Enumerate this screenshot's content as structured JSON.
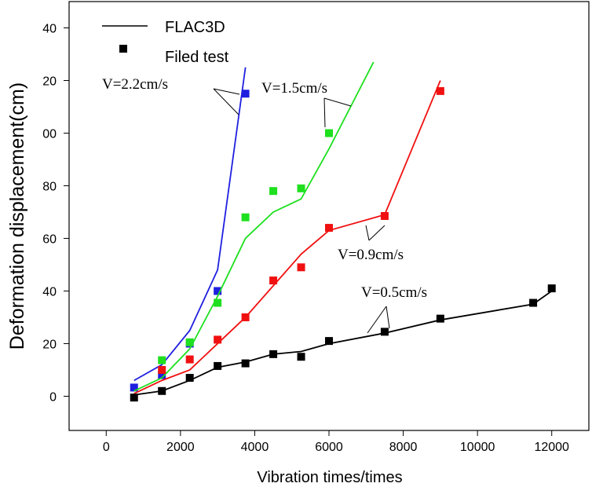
{
  "chart_data": {
    "type": "line-scatter",
    "x_label": "Vibration times/times",
    "y_label": "Deformation displacement(cm)",
    "legend": [
      "FLAC3D",
      "Filed test"
    ],
    "xlim": [
      -1000,
      13000
    ],
    "ylim": [
      -13,
      150
    ],
    "xticks": [
      0,
      2000,
      4000,
      6000,
      8000,
      10000,
      12000
    ],
    "yticks": [
      0,
      20,
      40,
      60,
      80,
      {
        "value": 100,
        "label": "00"
      },
      {
        "value": 120,
        "label": "20"
      },
      {
        "value": 140,
        "label": "40"
      }
    ],
    "series": [
      {
        "label": "V=2.2cm/s",
        "color": "#1f1fe0",
        "line": {
          "x": [
            750,
            1500,
            2250,
            3000,
            3750
          ],
          "values": [
            6,
            12,
            25,
            48,
            125
          ]
        },
        "points": {
          "x": [
            750,
            1500,
            2250,
            3000,
            3750
          ],
          "values": [
            3.3,
            8,
            20,
            40,
            115
          ]
        }
      },
      {
        "label": "V=1.5cm/s",
        "color": "#1ee01e",
        "line": {
          "x": [
            750,
            1500,
            2250,
            3000,
            3750,
            4500,
            5250,
            6000,
            7200
          ],
          "values": [
            2,
            7,
            18,
            38,
            60,
            70,
            75,
            94,
            127
          ]
        },
        "points": {
          "x": [
            1500,
            2250,
            3000,
            3750,
            4500,
            5250,
            6000
          ],
          "values": [
            13.7,
            20.5,
            35.5,
            68,
            78,
            79,
            100
          ]
        }
      },
      {
        "label": "V=0.9cm/s",
        "color": "#f01010",
        "line": {
          "x": [
            750,
            1500,
            2250,
            3000,
            3750,
            4500,
            5250,
            6000,
            7500,
            9000
          ],
          "values": [
            1,
            6,
            10,
            20,
            30,
            42,
            54,
            63,
            69,
            120
          ]
        },
        "points": {
          "x": [
            1500,
            2250,
            3000,
            3750,
            4500,
            5250,
            6000,
            7500,
            9000
          ],
          "values": [
            10,
            14,
            21.5,
            30,
            44,
            49,
            64,
            68.5,
            116
          ]
        }
      },
      {
        "label": "V=0.5cm/s",
        "color": "#000000",
        "line": {
          "x": [
            750,
            1500,
            2250,
            3000,
            3750,
            4500,
            5250,
            6000,
            7500,
            9000,
            11500,
            12000
          ],
          "values": [
            0.5,
            2,
            6,
            11,
            13,
            16,
            17,
            20,
            24,
            29,
            35,
            40
          ]
        },
        "points": {
          "x": [
            750,
            1500,
            2250,
            3000,
            3750,
            4500,
            5250,
            6000,
            7500,
            9000,
            11500,
            12000
          ],
          "values": [
            -0.5,
            2,
            7,
            11.5,
            12.5,
            16,
            15,
            21,
            24.5,
            29.5,
            35.5,
            41
          ]
        }
      }
    ]
  }
}
